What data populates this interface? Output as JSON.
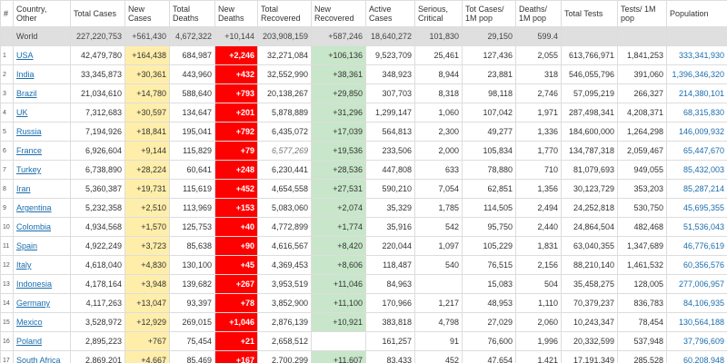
{
  "table": {
    "headers": [
      "#",
      "Country, Other",
      "Total Cases",
      "New Cases",
      "Total Deaths",
      "New Deaths",
      "Total Recovered",
      "New Recovered",
      "Active Cases",
      "Serious, Critical",
      "Tot Cases/ 1M pop",
      "Deaths/ 1M pop",
      "Total Tests",
      "Tests/ 1M pop",
      "Population"
    ],
    "world": [
      null,
      "World",
      "227,220,753",
      "+561,430",
      "4,672,322",
      "+10,144",
      "203,908,159",
      "+587,246",
      "18,640,272",
      "101,830",
      "29,150",
      "599.4",
      null,
      null,
      null
    ],
    "rows": [
      [
        "1",
        "USA",
        "42,479,780",
        "+164,438",
        "684,987",
        "+2,246",
        "32,271,084",
        "+106,136",
        "9,523,709",
        "25,461",
        "127,436",
        "2,055",
        "613,766,971",
        "1,841,253",
        "333,341,930"
      ],
      [
        "2",
        "India",
        "33,345,873",
        "+30,361",
        "443,960",
        "+432",
        "32,552,990",
        "+38,361",
        "348,923",
        "8,944",
        "23,881",
        "318",
        "546,055,796",
        "391,060",
        "1,396,346,320"
      ],
      [
        "3",
        "Brazil",
        "21,034,610",
        "+14,780",
        "588,640",
        "+793",
        "20,138,267",
        "+29,850",
        "307,703",
        "8,318",
        "98,118",
        "2,746",
        "57,095,219",
        "266,327",
        "214,380,101"
      ],
      [
        "4",
        "UK",
        "7,312,683",
        "+30,597",
        "134,647",
        "+201",
        "5,878,889",
        "+31,296",
        "1,299,147",
        "1,060",
        "107,042",
        "1,971",
        "287,498,341",
        "4,208,371",
        "68,315,830"
      ],
      [
        "5",
        "Russia",
        "7,194,926",
        "+18,841",
        "195,041",
        "+792",
        "6,435,072",
        "+17,039",
        "564,813",
        "2,300",
        "49,277",
        "1,336",
        "184,600,000",
        "1,264,298",
        "146,009,932"
      ],
      [
        "6",
        "France",
        "6,926,604",
        "+9,144",
        "115,829",
        "+79",
        "6,577,269",
        "+19,536",
        "233,506",
        "2,000",
        "105,834",
        "1,770",
        "134,787,318",
        "2,059,467",
        "65,447,670"
      ],
      [
        "7",
        "Turkey",
        "6,738,890",
        "+28,224",
        "60,641",
        "+248",
        "6,230,441",
        "+28,536",
        "447,808",
        "633",
        "78,880",
        "710",
        "81,079,693",
        "949,055",
        "85,432,003"
      ],
      [
        "8",
        "Iran",
        "5,360,387",
        "+19,731",
        "115,619",
        "+452",
        "4,654,558",
        "+27,531",
        "590,210",
        "7,054",
        "62,851",
        "1,356",
        "30,123,729",
        "353,203",
        "85,287,214"
      ],
      [
        "9",
        "Argentina",
        "5,232,358",
        "+2,510",
        "113,969",
        "+153",
        "5,083,060",
        "+2,074",
        "35,329",
        "1,785",
        "114,505",
        "2,494",
        "24,252,818",
        "530,750",
        "45,695,355"
      ],
      [
        "10",
        "Colombia",
        "4,934,568",
        "+1,570",
        "125,753",
        "+40",
        "4,772,899",
        "+1,774",
        "35,916",
        "542",
        "95,750",
        "2,440",
        "24,864,504",
        "482,468",
        "51,536,043"
      ],
      [
        "11",
        "Spain",
        "4,922,249",
        "+3,723",
        "85,638",
        "+90",
        "4,616,567",
        "+8,420",
        "220,044",
        "1,097",
        "105,229",
        "1,831",
        "63,040,355",
        "1,347,689",
        "46,776,619"
      ],
      [
        "12",
        "Italy",
        "4,618,040",
        "+4,830",
        "130,100",
        "+45",
        "4,369,453",
        "+8,606",
        "118,487",
        "540",
        "76,515",
        "2,156",
        "88,210,140",
        "1,461,532",
        "60,356,576"
      ],
      [
        "13",
        "Indonesia",
        "4,178,164",
        "+3,948",
        "139,682",
        "+267",
        "3,953,519",
        "+11,046",
        "84,963",
        null,
        "15,083",
        "504",
        "35,458,275",
        "128,005",
        "277,006,957"
      ],
      [
        "14",
        "Germany",
        "4,117,263",
        "+13,047",
        "93,397",
        "+78",
        "3,852,900",
        "+11,100",
        "170,966",
        "1,217",
        "48,953",
        "1,110",
        "70,379,237",
        "836,783",
        "84,106,935"
      ],
      [
        "15",
        "Mexico",
        "3,528,972",
        "+12,929",
        "269,015",
        "+1,046",
        "2,876,139",
        "+10,921",
        "383,818",
        "4,798",
        "27,029",
        "2,060",
        "10,243,347",
        "78,454",
        "130,564,188"
      ],
      [
        "16",
        "Poland",
        "2,895,223",
        "+767",
        "75,454",
        "+21",
        "2,658,512",
        null,
        "161,257",
        "91",
        "76,600",
        "1,996",
        "20,332,599",
        "537,948",
        "37,796,609"
      ],
      [
        "17",
        "South Africa",
        "2,869,201",
        "+4,667",
        "85,469",
        "+167",
        "2,700,299",
        "+11,607",
        "83,433",
        "452",
        "47,654",
        "1,421",
        "17,191,349",
        "285,528",
        "60,208,948"
      ]
    ]
  }
}
